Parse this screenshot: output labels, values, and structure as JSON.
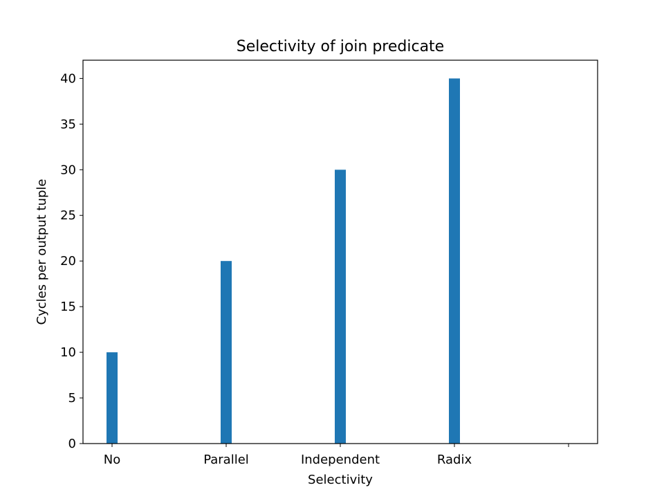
{
  "chart_data": {
    "type": "bar",
    "title": "Selectivity of join predicate",
    "xlabel": "Selectivity",
    "ylabel": "Cycles per output tuple",
    "categories": [
      "No",
      "Parallel",
      "Independent",
      "Radix",
      ""
    ],
    "values": [
      10,
      20,
      30,
      40,
      null
    ],
    "ylim": [
      0,
      42
    ],
    "yticks": [
      0,
      5,
      10,
      15,
      20,
      25,
      30,
      35,
      40
    ],
    "grid": false,
    "bar_color": "#1f77b4"
  }
}
